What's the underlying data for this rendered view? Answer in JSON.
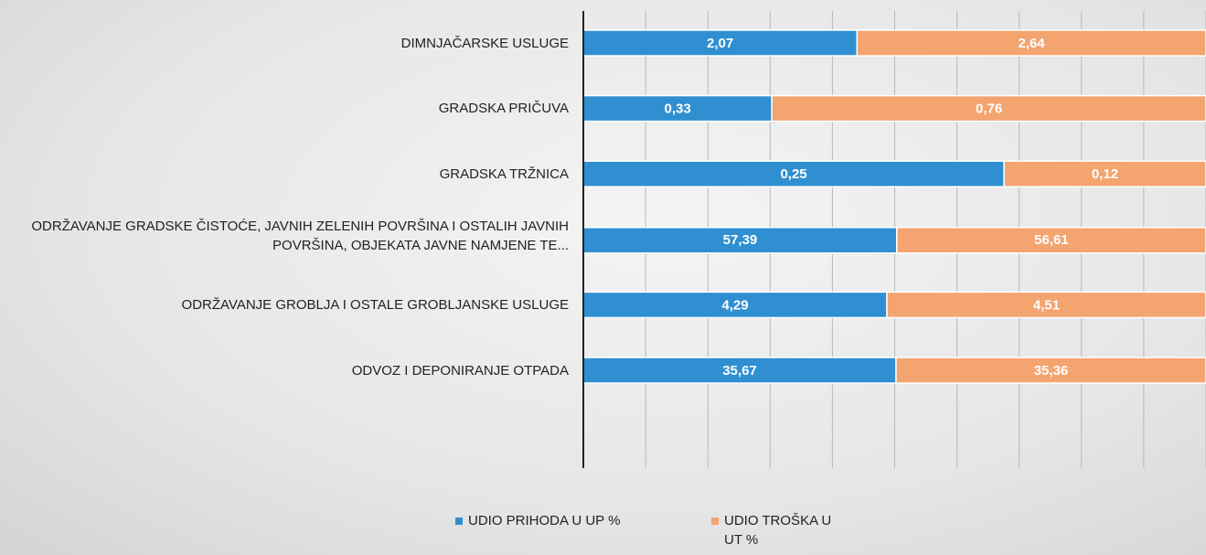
{
  "chart_data": {
    "type": "bar",
    "orientation": "horizontal",
    "stacked": "percent",
    "categories": [
      "DIMNJAČARSKE USLUGE",
      "GRADSKA PRIČUVA",
      "GRADSKA TRŽNICA",
      "ODRŽAVANJE GRADSKE ČISTOĆE, JAVNIH ZELENIH POVRŠINA I OSTALIH JAVNIH POVRŠINA, OBJEKATA JAVNE NAMJENE TE...",
      "ODRŽAVANJE GROBLJA I OSTALE GROBLJANSKE USLUGE",
      "ODVOZ I DEPONIRANJE OTPADA"
    ],
    "series": [
      {
        "name": "UDIO PRIHODA U UP %",
        "color": "#2f8fd1",
        "values": [
          2.07,
          0.33,
          0.25,
          57.39,
          4.29,
          35.67
        ],
        "value_labels": [
          "2,07",
          "0,33",
          "0,25",
          "57,39",
          "4,29",
          "35,67"
        ]
      },
      {
        "name": "UDIO TROŠKA U UT %",
        "color": "#f3a46f",
        "values": [
          2.64,
          0.76,
          0.12,
          56.61,
          4.51,
          35.36
        ],
        "value_labels": [
          "2,64",
          "0,76",
          "0,12",
          "56,61",
          "4,51",
          "35,36"
        ]
      }
    ],
    "grid": true,
    "legend": "bottom"
  }
}
